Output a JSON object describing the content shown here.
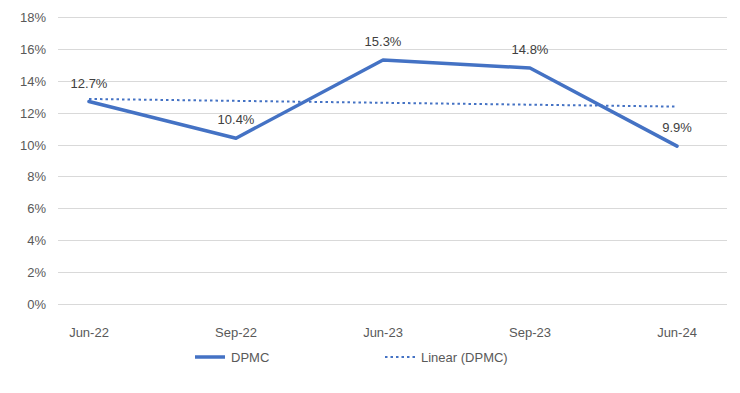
{
  "chart_data": {
    "type": "line",
    "categories": [
      "Jun-22",
      "Sep-22",
      "Jun-23",
      "Sep-23",
      "Jun-24"
    ],
    "series": [
      {
        "name": "DPMC",
        "color": "#4472c4",
        "line_style": "solid",
        "values": [
          12.7,
          10.4,
          15.3,
          14.8,
          9.9
        ],
        "value_labels": [
          "12.7%",
          "10.4%",
          "15.3%",
          "14.8%",
          "9.9%"
        ]
      },
      {
        "name": "Linear (DPMC)",
        "color": "#4472c4",
        "line_style": "dotted",
        "values": [
          12.86,
          12.74,
          12.62,
          12.5,
          12.38
        ]
      }
    ],
    "ylim": [
      0,
      18
    ],
    "yticks": [
      {
        "value": 0,
        "label": "0%"
      },
      {
        "value": 2,
        "label": "2%"
      },
      {
        "value": 4,
        "label": "4%"
      },
      {
        "value": 6,
        "label": "6%"
      },
      {
        "value": 8,
        "label": "8%"
      },
      {
        "value": 10,
        "label": "10%"
      },
      {
        "value": 12,
        "label": "12%"
      },
      {
        "value": 14,
        "label": "14%"
      },
      {
        "value": 16,
        "label": "16%"
      },
      {
        "value": 18,
        "label": "18%"
      }
    ],
    "grid": true,
    "data_labels": true,
    "legend": "bottom"
  }
}
